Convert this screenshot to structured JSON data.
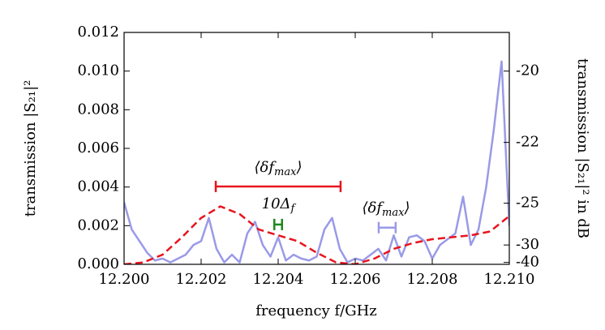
{
  "chart_data": {
    "type": "line",
    "xlabel": "frequency f/GHz",
    "ylabel": "transmission |S₂₁|²",
    "y2label": "transmission |S₂₁|² in dB",
    "y2scale": "dB",
    "xlim": [
      12.2,
      12.21
    ],
    "xticks": [
      {
        "value": 12.2,
        "label": "12.200"
      },
      {
        "value": 12.202,
        "label": "12.202"
      },
      {
        "value": 12.204,
        "label": "12.204"
      },
      {
        "value": 12.206,
        "label": "12.206"
      },
      {
        "value": 12.208,
        "label": "12.208"
      },
      {
        "value": 12.21,
        "label": "12.210"
      }
    ],
    "ylim": [
      0,
      0.012
    ],
    "yticks": [
      {
        "value": 0,
        "label": "0.000"
      },
      {
        "value": 0.002,
        "label": "0.002"
      },
      {
        "value": 0.004,
        "label": "0.004"
      },
      {
        "value": 0.006,
        "label": "0.006"
      },
      {
        "value": 0.008,
        "label": "0.008"
      },
      {
        "value": 0.01,
        "label": "0.010"
      },
      {
        "value": 0.012,
        "label": "0.012"
      }
    ],
    "y2ticks": [
      -20,
      -22,
      -25,
      -30,
      -40
    ],
    "series": [
      {
        "color": "#9a9ae8",
        "dash": false,
        "x": [
          12.2,
          12.2002,
          12.2004,
          12.2006,
          12.2008,
          12.201,
          12.2012,
          12.2014,
          12.2016,
          12.2018,
          12.202,
          12.2022,
          12.2024,
          12.2026,
          12.2028,
          12.203,
          12.2032,
          12.2034,
          12.2036,
          12.2038,
          12.204,
          12.2042,
          12.2044,
          12.2046,
          12.2048,
          12.205,
          12.2052,
          12.2054,
          12.2056,
          12.2058,
          12.206,
          12.2062,
          12.2064,
          12.2066,
          12.2068,
          12.207,
          12.2072,
          12.2074,
          12.2076,
          12.2078,
          12.208,
          12.2082,
          12.2084,
          12.2086,
          12.2088,
          12.209,
          12.2092,
          12.2094,
          12.2096,
          12.2098,
          12.21
        ],
        "values": [
          0.0032,
          0.0018,
          0.0012,
          0.0006,
          0.0002,
          0.0003,
          0.0001,
          0.0003,
          0.0005,
          0.001,
          0.0012,
          0.0024,
          0.0008,
          0.0001,
          0.0005,
          0.0001,
          0.0016,
          0.0022,
          0.001,
          0.0004,
          0.0014,
          0.0002,
          0.0005,
          0.0003,
          0.0002,
          0.0004,
          0.0018,
          0.0024,
          0.0008,
          0.0001,
          0.0003,
          0.0002,
          0.0005,
          0.0008,
          0.0002,
          0.0015,
          0.0004,
          0.0014,
          0.0015,
          0.0012,
          0.0003,
          0.001,
          0.0013,
          0.0016,
          0.0035,
          0.001,
          0.0018,
          0.004,
          0.007,
          0.0105,
          0.002
        ]
      },
      {
        "color": "#e8141e",
        "dash": true,
        "x": [
          12.2,
          12.2005,
          12.201,
          12.2015,
          12.202,
          12.2025,
          12.203,
          12.2035,
          12.204,
          12.2045,
          12.205,
          12.2055,
          12.206,
          12.2065,
          12.207,
          12.2075,
          12.208,
          12.2085,
          12.209,
          12.2095,
          12.21
        ],
        "values": [
          0,
          0.0001,
          0.0005,
          0.0014,
          0.0024,
          0.003,
          0.0026,
          0.0018,
          0.0015,
          0.0012,
          0.0006,
          0.0001,
          0,
          0.0003,
          0.0008,
          0.0011,
          0.0013,
          0.0014,
          0.0015,
          0.0017,
          0.0025
        ]
      }
    ],
    "annotations": [
      {
        "text": "⟨δf",
        "sub": "max",
        "suffix": "⟩",
        "x": 12.204,
        "y": 0.005,
        "color": "#000000"
      },
      {
        "text": "10Δ",
        "sub": "f",
        "suffix": "",
        "x": 12.204,
        "y": 0.0031,
        "color": "#000000"
      },
      {
        "text": "⟨δf",
        "sub": "max",
        "suffix": "⟩",
        "x": 12.2068,
        "y": 0.0029,
        "color": "#000000"
      }
    ],
    "ranges": [
      {
        "x": [
          12.20238,
          12.20562
        ],
        "y": 0.00403,
        "color": "#e8141e"
      },
      {
        "x": [
          12.2039,
          12.2041
        ],
        "y": 0.00206,
        "color": "#1a8a1a"
      },
      {
        "x": [
          12.20661,
          12.20705
        ],
        "y": 0.0019,
        "color": "#9a9ae8"
      }
    ]
  }
}
